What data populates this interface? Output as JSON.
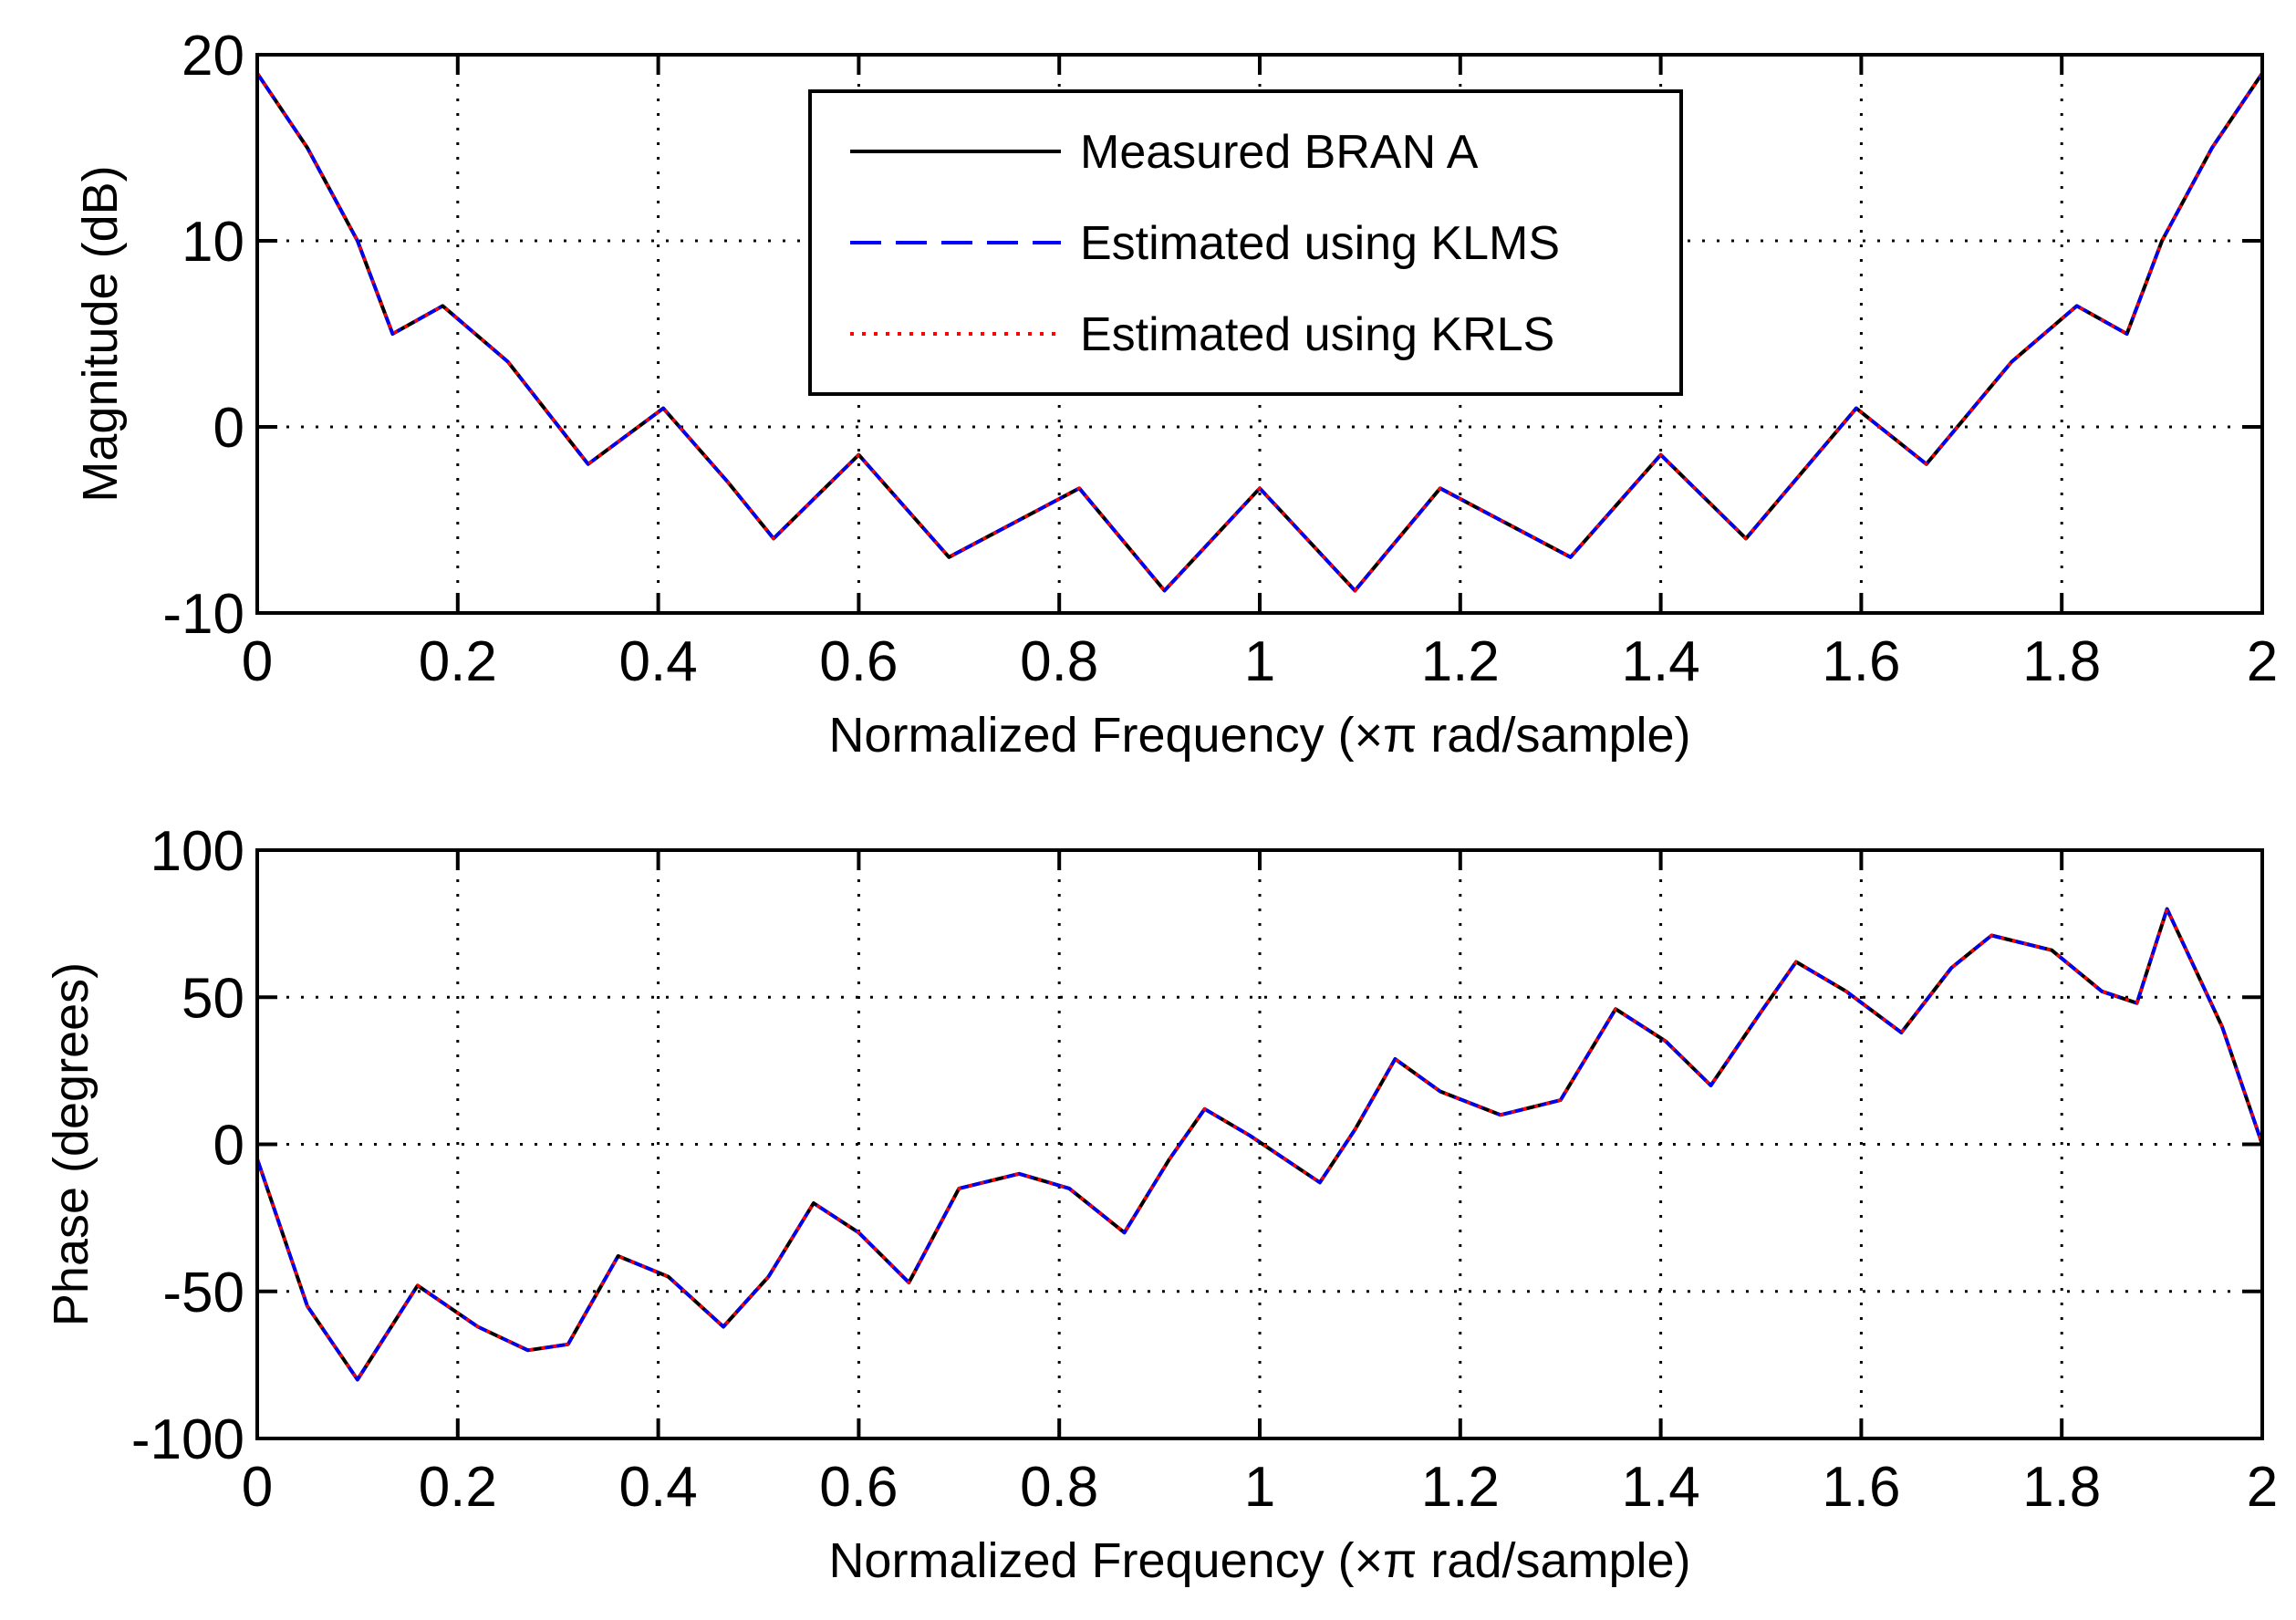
{
  "figure": {
    "background": "#ffffff"
  },
  "chart_data": [
    {
      "type": "line",
      "title": "",
      "xlabel": "Normalized Frequency  (×π rad/sample)",
      "ylabel": "Magnitude (dB)",
      "xlim": [
        0,
        2
      ],
      "ylim": [
        -10,
        20
      ],
      "xticks": [
        0,
        0.2,
        0.4,
        0.6,
        0.8,
        1,
        1.2,
        1.4,
        1.6,
        1.8,
        2
      ],
      "xtick_labels": [
        "0",
        "0.2",
        "0.4",
        "0.6",
        "0.8",
        "1",
        "1.2",
        "1.4",
        "1.6",
        "1.8",
        "2"
      ],
      "yticks": [
        -10,
        0,
        10,
        20
      ],
      "ytick_labels": [
        "-10",
        "0",
        "10",
        "20"
      ],
      "grid": true,
      "legend_position": "top-center",
      "x": [
        0,
        0.05,
        0.1,
        0.135,
        0.185,
        0.25,
        0.33,
        0.405,
        0.47,
        0.515,
        0.6,
        0.69,
        0.82,
        0.905,
        1.0,
        1.095,
        1.18,
        1.31,
        1.4,
        1.485,
        1.595,
        1.665,
        1.75,
        1.815,
        1.865,
        1.9,
        1.95,
        2.0
      ],
      "series": [
        {
          "name": "Measured BRAN A",
          "color": "#000000",
          "dash": "solid",
          "values": [
            19,
            15,
            10,
            5,
            6.5,
            3.5,
            -2,
            1,
            -3,
            -6,
            -1.5,
            -7,
            -3.3,
            -8.8,
            -3.3,
            -8.8,
            -3.3,
            -7,
            -1.5,
            -6,
            1,
            -2,
            3.5,
            6.5,
            5,
            10,
            15,
            19
          ]
        },
        {
          "name": "Estimated using KLMS",
          "color": "#0000ff",
          "dash": "dashed",
          "values": [
            19,
            15,
            10,
            5,
            6.5,
            3.5,
            -2,
            1,
            -3,
            -6,
            -1.5,
            -7,
            -3.3,
            -8.8,
            -3.3,
            -8.8,
            -3.3,
            -7,
            -1.5,
            -6,
            1,
            -2,
            3.5,
            6.5,
            5,
            10,
            15,
            19
          ]
        },
        {
          "name": "Estimated using KRLS",
          "color": "#ff0000",
          "dash": "dotted",
          "values": [
            19,
            15,
            10,
            5,
            6.5,
            3.5,
            -2,
            1,
            -3,
            -6,
            -1.5,
            -7,
            -3.3,
            -8.8,
            -3.3,
            -8.8,
            -3.3,
            -7,
            -1.5,
            -6,
            1,
            -2,
            3.5,
            6.5,
            5,
            10,
            15,
            19
          ]
        }
      ]
    },
    {
      "type": "line",
      "title": "",
      "xlabel": "Normalized Frequency  (×π rad/sample)",
      "ylabel": "Phase (degrees)",
      "xlim": [
        0,
        2
      ],
      "ylim": [
        -100,
        100
      ],
      "xticks": [
        0,
        0.2,
        0.4,
        0.6,
        0.8,
        1,
        1.2,
        1.4,
        1.6,
        1.8,
        2
      ],
      "xtick_labels": [
        "0",
        "0.2",
        "0.4",
        "0.6",
        "0.8",
        "1",
        "1.2",
        "1.4",
        "1.6",
        "1.8",
        "2"
      ],
      "yticks": [
        -100,
        -50,
        0,
        50,
        100
      ],
      "ytick_labels": [
        "-100",
        "-50",
        "0",
        "50",
        "100"
      ],
      "grid": true,
      "x": [
        0,
        0.05,
        0.1,
        0.16,
        0.22,
        0.27,
        0.31,
        0.36,
        0.41,
        0.465,
        0.51,
        0.555,
        0.6,
        0.65,
        0.7,
        0.76,
        0.81,
        0.865,
        0.91,
        0.945,
        0.99,
        1.06,
        1.095,
        1.135,
        1.18,
        1.24,
        1.3,
        1.355,
        1.405,
        1.45,
        1.5,
        1.535,
        1.585,
        1.64,
        1.69,
        1.73,
        1.79,
        1.84,
        1.875,
        1.905,
        1.96,
        2.0
      ],
      "series": [
        {
          "name": "Measured BRAN A",
          "color": "#000000",
          "dash": "solid",
          "values": [
            -5,
            -55,
            -80,
            -48,
            -62,
            -70,
            -68,
            -38,
            -45,
            -62,
            -45,
            -20,
            -30,
            -47,
            -15,
            -10,
            -15,
            -30,
            -5,
            12,
            3,
            -13,
            5,
            29,
            18,
            10,
            15,
            46,
            35,
            20,
            45,
            62,
            52,
            38,
            60,
            71,
            66,
            52,
            48,
            80,
            40,
            0
          ]
        },
        {
          "name": "Estimated using KLMS",
          "color": "#0000ff",
          "dash": "dashed",
          "values": [
            -5,
            -55,
            -80,
            -48,
            -62,
            -70,
            -68,
            -38,
            -45,
            -62,
            -45,
            -20,
            -30,
            -47,
            -15,
            -10,
            -15,
            -30,
            -5,
            12,
            3,
            -13,
            5,
            29,
            18,
            10,
            15,
            46,
            35,
            20,
            45,
            62,
            52,
            38,
            60,
            71,
            66,
            52,
            48,
            80,
            40,
            0
          ]
        },
        {
          "name": "Estimated using KRLS",
          "color": "#ff0000",
          "dash": "dotted",
          "values": [
            -5,
            -55,
            -80,
            -48,
            -62,
            -70,
            -68,
            -38,
            -45,
            -62,
            -45,
            -20,
            -30,
            -47,
            -15,
            -10,
            -15,
            -30,
            -5,
            12,
            3,
            -13,
            5,
            29,
            18,
            10,
            15,
            46,
            35,
            20,
            45,
            62,
            52,
            38,
            60,
            71,
            66,
            52,
            48,
            80,
            40,
            0
          ]
        }
      ]
    }
  ]
}
